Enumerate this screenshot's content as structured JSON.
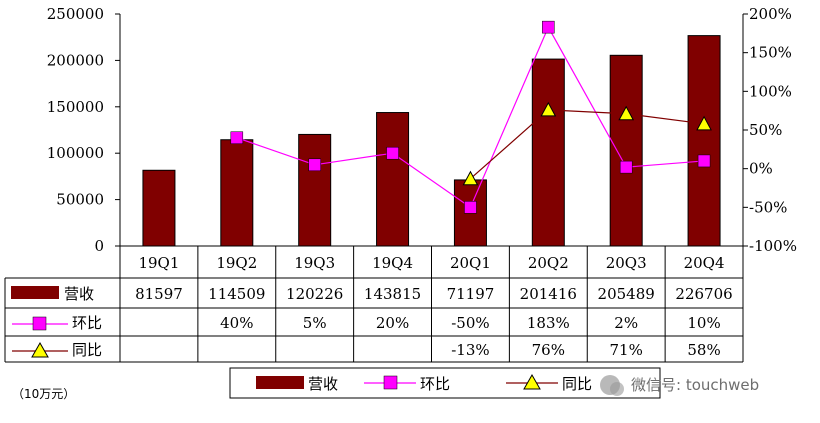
{
  "chart_data": {
    "type": "bar",
    "categories": [
      "19Q1",
      "19Q2",
      "19Q3",
      "19Q4",
      "20Q1",
      "20Q2",
      "20Q3",
      "20Q4"
    ],
    "series": [
      {
        "name": "营收",
        "type": "bar",
        "axis": "left",
        "color": "#800000",
        "values": [
          81597,
          114509,
          120226,
          143815,
          71197,
          201416,
          205489,
          226706
        ]
      },
      {
        "name": "环比",
        "type": "line",
        "axis": "right",
        "color": "#ff00ff",
        "marker": "square",
        "values": [
          null,
          40,
          5,
          20,
          -50,
          183,
          2,
          10
        ],
        "labels": [
          "",
          "40%",
          "5%",
          "20%",
          "-50%",
          "183%",
          "2%",
          "10%"
        ]
      },
      {
        "name": "同比",
        "type": "line",
        "axis": "right",
        "color": "#800000",
        "marker": "triangle",
        "marker_color": "#ffff00",
        "values": [
          null,
          null,
          null,
          null,
          -13,
          76,
          71,
          58
        ],
        "labels": [
          "",
          "",
          "",
          "",
          "-13%",
          "76%",
          "71%",
          "58%"
        ]
      }
    ],
    "ylim_left": [
      0,
      250000
    ],
    "yticks_left": [
      "0",
      "50000",
      "100000",
      "150000",
      "200000",
      "250000"
    ],
    "ylim_right": [
      -100,
      200
    ],
    "yticks_right": [
      "-100%",
      "-50%",
      "0%",
      "50%",
      "100%",
      "150%",
      "200%"
    ],
    "unit_note": "（10万元）",
    "legend_position": "bottom",
    "grid": false,
    "data_table": true
  },
  "watermark": "微信号: touchweb"
}
